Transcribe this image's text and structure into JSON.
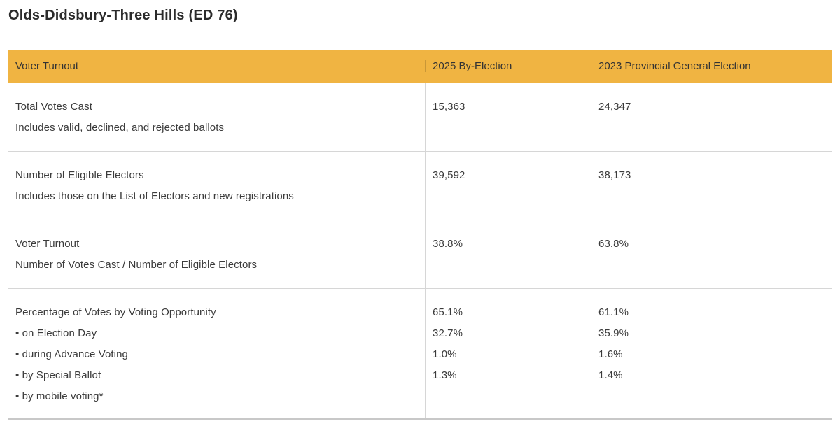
{
  "page_title": "Olds-Didsbury-Three Hills (ED 76)",
  "colors": {
    "header_bg": "#F0B442",
    "row_border": "#D6D6D6",
    "table_bottom_border": "#C8C8C8",
    "text": "#3B3B3B",
    "title_text": "#2B2B2B"
  },
  "table": {
    "columns": [
      "Voter Turnout",
      "2025 By-Election",
      "2023 Provincial General Election"
    ],
    "rows": [
      {
        "label": "Total Votes Cast",
        "sublabel": "Includes valid, declined, and rejected ballots",
        "by_election_2025": "15,363",
        "general_2023": "24,347"
      },
      {
        "label": "Number of Eligible Electors",
        "sublabel": "Includes those on the List of Electors and new registrations",
        "by_election_2025": "39,592",
        "general_2023": "38,173"
      },
      {
        "label": "Voter Turnout",
        "sublabel": "Number of Votes Cast / Number of Eligible Electors",
        "by_election_2025": "38.8%",
        "general_2023": "63.8%"
      },
      {
        "label": "Percentage of Votes by Voting Opportunity",
        "bullets": [
          "• on Election Day",
          "• during Advance Voting",
          "• by Special Ballot",
          "• by mobile voting*"
        ],
        "by_election_2025": [
          "65.1%",
          "32.7%",
          "1.0%",
          "1.3%"
        ],
        "general_2023": [
          "61.1%",
          "35.9%",
          "1.6%",
          "1.4%"
        ]
      }
    ]
  }
}
